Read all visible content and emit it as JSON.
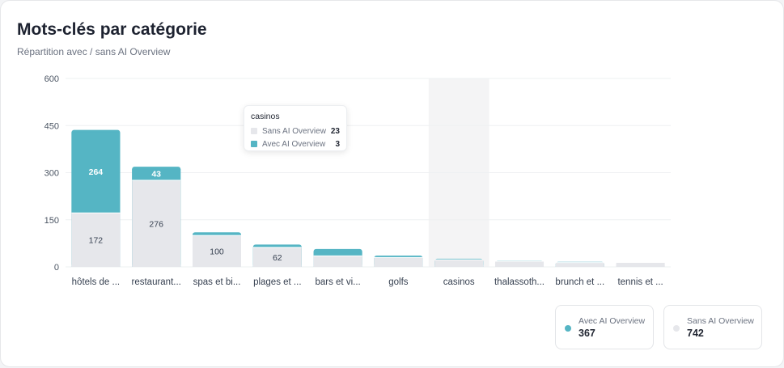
{
  "title": "Mots-clés par catégorie",
  "subtitle": "Répartition avec / sans AI Overview",
  "colors": {
    "avec": "#55b5c4",
    "sans": "#e6e7eb",
    "highlight": "#f4f4f5"
  },
  "tooltip": {
    "category": "casinos",
    "rows": [
      {
        "name": "Sans AI Overview",
        "value": "23",
        "color": "#e6e7eb"
      },
      {
        "name": "Avec AI Overview",
        "value": "3",
        "color": "#55b5c4"
      }
    ]
  },
  "legend": [
    {
      "label": "Avec AI Overview",
      "value": "367",
      "color": "#55b5c4"
    },
    {
      "label": "Sans AI Overview",
      "value": "742",
      "color": "#e6e7eb"
    }
  ],
  "chart_data": {
    "type": "bar",
    "stacked": true,
    "categories": [
      "hôtels de ...",
      "restaurant...",
      "spas et bi...",
      "plages et ...",
      "bars et vi...",
      "golfs",
      "casinos",
      "thalassoth...",
      "brunch et ...",
      "tennis et ..."
    ],
    "series": [
      {
        "name": "Sans AI Overview",
        "values": [
          172,
          276,
          100,
          62,
          35,
          30,
          23,
          18,
          14,
          13
        ],
        "labels": [
          "172",
          "276",
          "100",
          "62",
          "",
          "",
          "",
          "",
          "",
          ""
        ]
      },
      {
        "name": "Avec AI Overview",
        "values": [
          264,
          43,
          10,
          9,
          22,
          6,
          3,
          2,
          2,
          0
        ],
        "labels": [
          "264",
          "43",
          "",
          "",
          "",
          "",
          "",
          "",
          "",
          ""
        ]
      }
    ],
    "ylim": [
      0,
      600
    ],
    "yticks": [
      0,
      150,
      300,
      450,
      600
    ],
    "highlight_category": "casinos",
    "grid": true
  }
}
